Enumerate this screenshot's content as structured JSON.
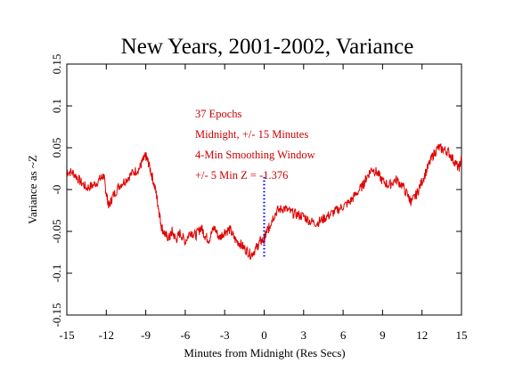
{
  "chart_data": {
    "type": "line",
    "title": "New Years, 2001-2002, Variance",
    "xlabel": "Minutes from Midnight (Res Secs)",
    "ylabel": "Variance as ~Z",
    "xlim": [
      -15,
      15
    ],
    "ylim": [
      -0.15,
      0.15
    ],
    "x_ticks": [
      "-15",
      "-12",
      "-9",
      "-6",
      "-3",
      "0",
      "3",
      "6",
      "9",
      "12",
      "15"
    ],
    "y_ticks": [
      "-0.15",
      "-0.1",
      "-0.05",
      "-0",
      "0.05",
      "0.1",
      "0.15"
    ],
    "grid": false,
    "line_color": "#e00000",
    "marker_color": "#0000ff",
    "annotations": [
      "37 Epochs",
      "Midnight, +/- 15 Minutes",
      "4-Min Smoothing Window",
      "+/- 5 Min Z = -1.376"
    ],
    "marker_line": {
      "x": 0,
      "y_from": -0.08,
      "y_to": 0.015
    },
    "series": [
      {
        "values": [
          [
            -15,
            0.022
          ],
          [
            -14.5,
            0.02
          ],
          [
            -14,
            0.01
          ],
          [
            -13.5,
            0.002
          ],
          [
            -13,
            0.005
          ],
          [
            -12.5,
            0.012
          ],
          [
            -12.2,
            0.017
          ],
          [
            -12,
            -0.005
          ],
          [
            -11.8,
            -0.02
          ],
          [
            -11.5,
            -0.008
          ],
          [
            -11,
            0.005
          ],
          [
            -10.5,
            0.012
          ],
          [
            -10,
            0.02
          ],
          [
            -9.5,
            0.025
          ],
          [
            -9.2,
            0.035
          ],
          [
            -9,
            0.04
          ],
          [
            -8.8,
            0.032
          ],
          [
            -8.5,
            0.015
          ],
          [
            -8.2,
            -0.005
          ],
          [
            -8,
            -0.025
          ],
          [
            -7.8,
            -0.045
          ],
          [
            -7.5,
            -0.055
          ],
          [
            -7.2,
            -0.058
          ],
          [
            -7,
            -0.05
          ],
          [
            -6.7,
            -0.06
          ],
          [
            -6.4,
            -0.052
          ],
          [
            -6,
            -0.062
          ],
          [
            -5.6,
            -0.05
          ],
          [
            -5.2,
            -0.055
          ],
          [
            -4.8,
            -0.045
          ],
          [
            -4.5,
            -0.055
          ],
          [
            -4.2,
            -0.06
          ],
          [
            -3.8,
            -0.045
          ],
          [
            -3.4,
            -0.058
          ],
          [
            -3,
            -0.05
          ],
          [
            -2.6,
            -0.048
          ],
          [
            -2.2,
            -0.06
          ],
          [
            -1.8,
            -0.065
          ],
          [
            -1.4,
            -0.072
          ],
          [
            -1,
            -0.078
          ],
          [
            -0.6,
            -0.07
          ],
          [
            -0.3,
            -0.062
          ],
          [
            0,
            -0.06
          ],
          [
            0.2,
            -0.05
          ],
          [
            0.4,
            -0.045
          ],
          [
            0.6,
            -0.035
          ],
          [
            1,
            -0.025
          ],
          [
            1.5,
            -0.022
          ],
          [
            2,
            -0.027
          ],
          [
            2.5,
            -0.03
          ],
          [
            3,
            -0.032
          ],
          [
            3.5,
            -0.038
          ],
          [
            4,
            -0.04
          ],
          [
            4.5,
            -0.035
          ],
          [
            5,
            -0.03
          ],
          [
            5.5,
            -0.025
          ],
          [
            6,
            -0.02
          ],
          [
            6.5,
            -0.015
          ],
          [
            7,
            -0.005
          ],
          [
            7.5,
            0.005
          ],
          [
            7.8,
            0.015
          ],
          [
            8.2,
            0.025
          ],
          [
            8.6,
            0.02
          ],
          [
            9,
            0.01
          ],
          [
            9.5,
            0.005
          ],
          [
            10,
            0.012
          ],
          [
            10.5,
            0.005
          ],
          [
            11,
            -0.01
          ],
          [
            11.2,
            -0.015
          ],
          [
            11.6,
            -0.005
          ],
          [
            12,
            0.01
          ],
          [
            12.4,
            0.025
          ],
          [
            12.8,
            0.04
          ],
          [
            13.2,
            0.05
          ],
          [
            13.6,
            0.048
          ],
          [
            14,
            0.045
          ],
          [
            14.4,
            0.035
          ],
          [
            14.8,
            0.025
          ],
          [
            15,
            0.038
          ]
        ]
      }
    ]
  }
}
